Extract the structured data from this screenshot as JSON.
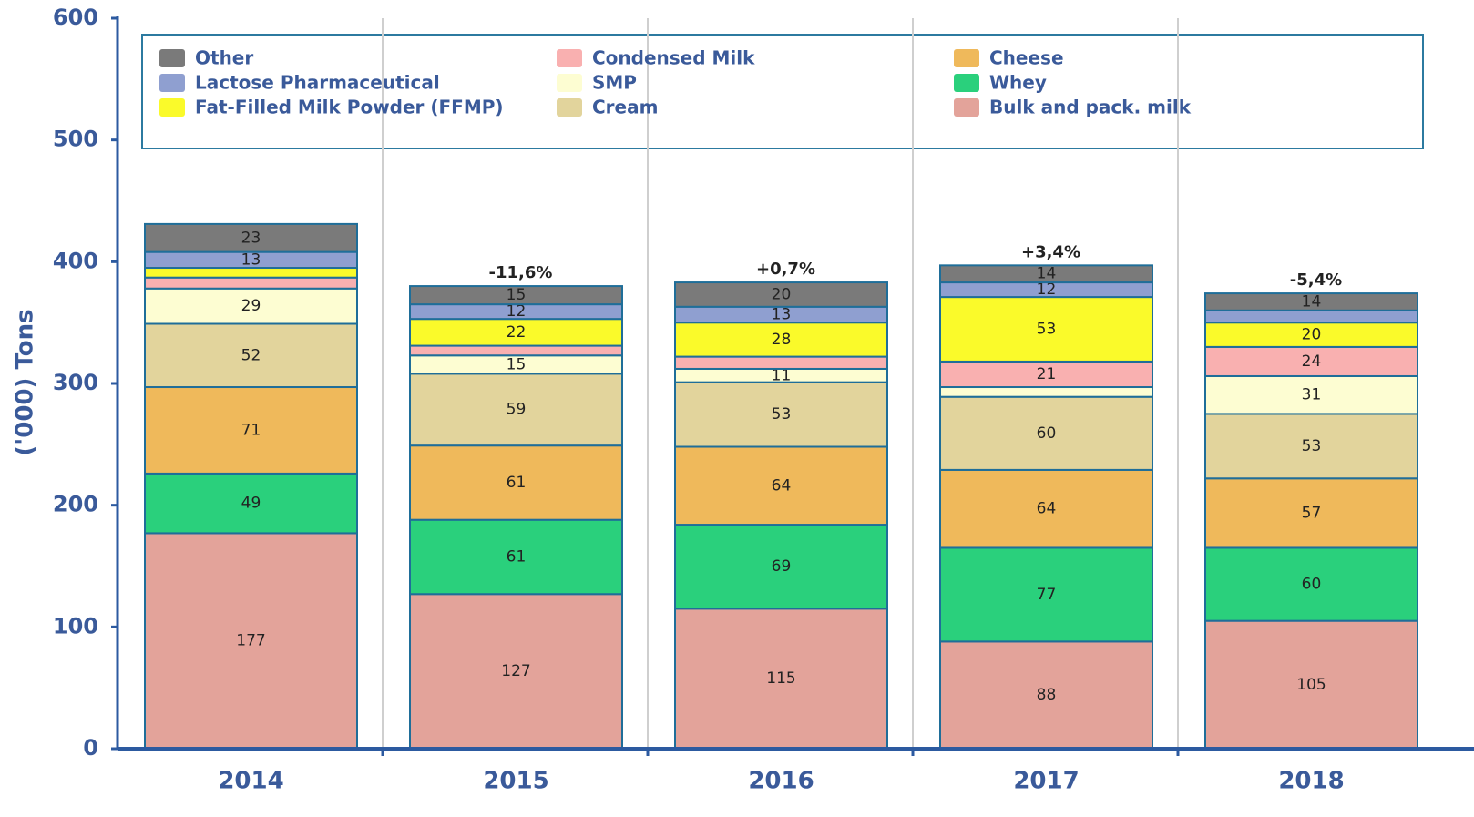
{
  "chart_data": {
    "type": "stacked_bar",
    "y_label": "('000) Tons",
    "categories": [
      "2014",
      "2015",
      "2016",
      "2017",
      "2018"
    ],
    "series": [
      {
        "name": "Bulk and pack. milk",
        "color": "#e3a39a",
        "values": [
          177,
          127,
          115,
          88,
          105
        ],
        "value_labels": [
          177,
          127,
          115,
          88,
          105
        ]
      },
      {
        "name": "Whey",
        "color": "#2ad07c",
        "values": [
          49,
          61,
          69,
          77,
          60
        ],
        "value_labels": [
          49,
          61,
          69,
          77,
          60
        ]
      },
      {
        "name": "Cheese",
        "color": "#efb95b",
        "values": [
          71,
          61,
          64,
          64,
          57
        ],
        "value_labels": [
          71,
          61,
          64,
          64,
          57
        ]
      },
      {
        "name": "Cream",
        "color": "#e2d49c",
        "values": [
          52,
          59,
          53,
          60,
          53
        ],
        "value_labels": [
          52,
          59,
          53,
          60,
          53
        ]
      },
      {
        "name": "SMP",
        "color": "#fdfdd2",
        "values": [
          29,
          15,
          11,
          8,
          31
        ],
        "value_labels": [
          29,
          15,
          11,
          null,
          31
        ]
      },
      {
        "name": "Condensed Milk",
        "color": "#f9b0b0",
        "values": [
          9,
          8,
          10,
          21,
          24
        ],
        "value_labels": [
          null,
          null,
          null,
          21,
          24
        ]
      },
      {
        "name": "Fat-Filled Milk Powder (FFMP)",
        "color": "#fafa2a",
        "values": [
          8,
          22,
          28,
          53,
          20
        ],
        "value_labels": [
          null,
          22,
          28,
          53,
          20
        ]
      },
      {
        "name": "Lactose Pharmaceutical",
        "color": "#8f9fd0",
        "values": [
          13,
          12,
          13,
          12,
          10
        ],
        "value_labels": [
          13,
          12,
          13,
          12,
          null
        ]
      },
      {
        "name": "Other",
        "color": "#7a7a7a",
        "values": [
          23,
          15,
          20,
          14,
          14
        ],
        "value_labels": [
          23,
          15,
          20,
          14,
          14
        ]
      }
    ],
    "change_labels": [
      null,
      "-11,6%",
      "+0,7%",
      "+3,4%",
      "-5,4%"
    ],
    "ylim": [
      0,
      600
    ],
    "yticks": [
      0,
      100,
      200,
      300,
      400,
      500,
      600
    ],
    "grid": "x",
    "legend": "top"
  }
}
